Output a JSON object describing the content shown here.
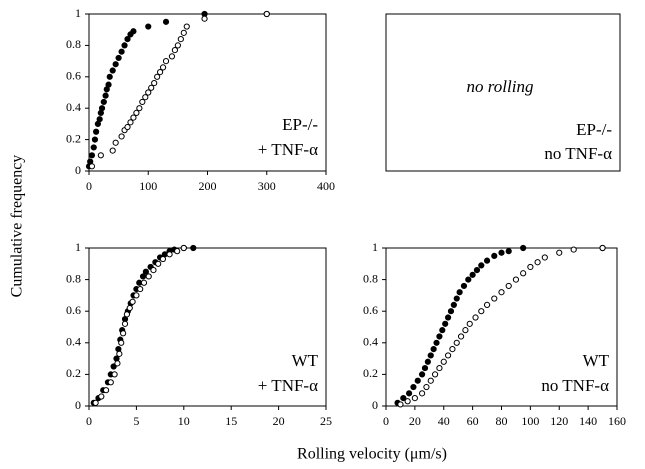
{
  "ylabel": "Cumulative frequency",
  "xlabel": "Rolling velocity (μm/s)",
  "chart_data": [
    {
      "type": "scatter",
      "xlim": [
        0,
        400
      ],
      "xticks": [
        0,
        100,
        200,
        300,
        400
      ],
      "ylim": [
        0,
        1
      ],
      "yticks": [
        0,
        0.2,
        0.4,
        0.6,
        0.8,
        1
      ],
      "annotations": [
        "EP-/-",
        "+ TNF-α"
      ],
      "series": [
        {
          "color": "#000000",
          "fill": "#000000",
          "x": [
            0,
            2,
            5,
            8,
            10,
            12,
            15,
            18,
            20,
            22,
            25,
            28,
            30,
            33,
            35,
            40,
            45,
            50,
            55,
            60,
            65,
            70,
            75,
            100,
            130,
            195,
            300
          ],
          "values": [
            0.03,
            0.06,
            0.1,
            0.15,
            0.2,
            0.25,
            0.3,
            0.33,
            0.37,
            0.4,
            0.44,
            0.48,
            0.52,
            0.55,
            0.6,
            0.64,
            0.68,
            0.72,
            0.76,
            0.8,
            0.84,
            0.87,
            0.89,
            0.92,
            0.95,
            1,
            1
          ]
        },
        {
          "color": "#000000",
          "fill": "#ffffff",
          "x": [
            5,
            20,
            40,
            45,
            55,
            60,
            65,
            70,
            75,
            80,
            85,
            90,
            95,
            100,
            105,
            110,
            115,
            120,
            125,
            130,
            140,
            145,
            150,
            155,
            160,
            165,
            195,
            300
          ],
          "values": [
            0.03,
            0.1,
            0.13,
            0.18,
            0.22,
            0.26,
            0.28,
            0.31,
            0.34,
            0.37,
            0.4,
            0.44,
            0.47,
            0.5,
            0.53,
            0.56,
            0.6,
            0.63,
            0.66,
            0.7,
            0.73,
            0.77,
            0.8,
            0.84,
            0.88,
            0.92,
            0.97,
            1
          ]
        }
      ]
    },
    {
      "type": "empty",
      "annotations": [
        "no rolling",
        "EP-/-",
        "no TNF-α"
      ]
    },
    {
      "type": "scatter",
      "xlim": [
        0,
        25
      ],
      "xticks": [
        0,
        5,
        10,
        15,
        20,
        25
      ],
      "ylim": [
        0,
        1
      ],
      "yticks": [
        0,
        0.2,
        0.4,
        0.6,
        0.8,
        1
      ],
      "annotations": [
        "WT",
        "+ TNF-α"
      ],
      "series": [
        {
          "color": "#000000",
          "fill": "#000000",
          "x": [
            0.5,
            1,
            1.5,
            2,
            2.3,
            2.6,
            2.9,
            3.1,
            3.3,
            3.5,
            3.8,
            4.1,
            4.4,
            4.7,
            5,
            5.3,
            5.7,
            6,
            6.5,
            7,
            7.5,
            8,
            8.5,
            9,
            10,
            11
          ],
          "values": [
            0.02,
            0.05,
            0.1,
            0.15,
            0.2,
            0.25,
            0.3,
            0.36,
            0.42,
            0.48,
            0.55,
            0.6,
            0.65,
            0.7,
            0.74,
            0.78,
            0.82,
            0.85,
            0.88,
            0.91,
            0.94,
            0.96,
            0.98,
            0.99,
            1,
            1
          ]
        },
        {
          "color": "#000000",
          "fill": "#ffffff",
          "x": [
            0.7,
            1.3,
            1.8,
            2.3,
            2.7,
            3,
            3.2,
            3.4,
            3.6,
            3.8,
            4,
            4.3,
            4.6,
            5,
            5.4,
            5.8,
            6.3,
            6.8,
            7.3,
            7.8,
            8.5,
            9.3,
            10
          ],
          "values": [
            0.02,
            0.06,
            0.1,
            0.15,
            0.2,
            0.27,
            0.33,
            0.4,
            0.46,
            0.52,
            0.58,
            0.62,
            0.66,
            0.7,
            0.74,
            0.78,
            0.82,
            0.86,
            0.9,
            0.93,
            0.96,
            0.98,
            1
          ]
        }
      ]
    },
    {
      "type": "scatter",
      "xlim": [
        0,
        160
      ],
      "xticks": [
        0,
        20,
        40,
        60,
        80,
        100,
        120,
        140,
        160
      ],
      "ylim": [
        0,
        1
      ],
      "yticks": [
        0,
        0.2,
        0.4,
        0.6,
        0.8,
        1
      ],
      "annotations": [
        "WT",
        "no TNF-α"
      ],
      "series": [
        {
          "color": "#000000",
          "fill": "#000000",
          "x": [
            8,
            12,
            16,
            19,
            22,
            25,
            27,
            29,
            31,
            33,
            35,
            37,
            39,
            41,
            43,
            45,
            47,
            49,
            51,
            54,
            57,
            60,
            63,
            66,
            70,
            75,
            80,
            85,
            95,
            150
          ],
          "values": [
            0.02,
            0.05,
            0.08,
            0.12,
            0.16,
            0.2,
            0.24,
            0.28,
            0.32,
            0.36,
            0.4,
            0.44,
            0.48,
            0.52,
            0.56,
            0.6,
            0.64,
            0.68,
            0.72,
            0.76,
            0.8,
            0.83,
            0.86,
            0.89,
            0.92,
            0.95,
            0.97,
            0.98,
            1,
            1
          ]
        },
        {
          "color": "#000000",
          "fill": "#ffffff",
          "x": [
            10,
            15,
            20,
            25,
            28,
            31,
            34,
            37,
            40,
            43,
            46,
            49,
            52,
            55,
            58,
            62,
            66,
            70,
            75,
            80,
            85,
            90,
            95,
            100,
            105,
            110,
            120,
            130,
            150
          ],
          "values": [
            0.01,
            0.03,
            0.05,
            0.08,
            0.12,
            0.16,
            0.2,
            0.24,
            0.28,
            0.32,
            0.36,
            0.4,
            0.44,
            0.48,
            0.52,
            0.56,
            0.6,
            0.64,
            0.68,
            0.72,
            0.76,
            0.8,
            0.84,
            0.88,
            0.91,
            0.94,
            0.97,
            0.99,
            1
          ]
        }
      ]
    }
  ]
}
